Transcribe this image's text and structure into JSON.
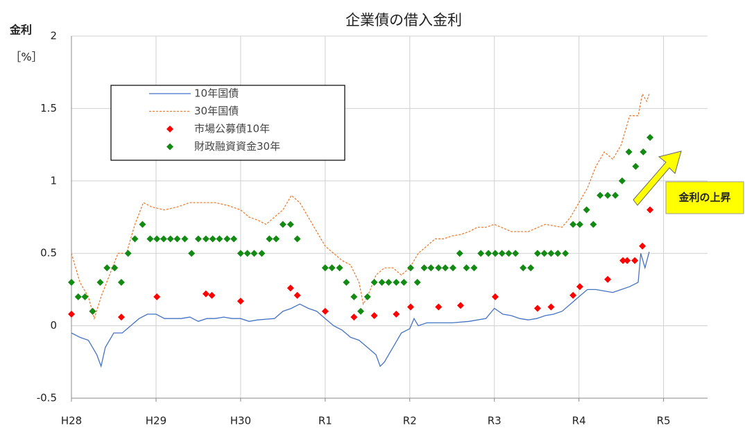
{
  "chart_data": {
    "type": "line",
    "title": "企業債の借入金利",
    "y_label": "金利",
    "y_unit": "［%］",
    "annotation": "金利の上昇",
    "xlim": [
      0,
      7.52
    ],
    "xticks": [
      {
        "value": 0,
        "label": "H28"
      },
      {
        "value": 1,
        "label": "H29"
      },
      {
        "value": 2,
        "label": "H30"
      },
      {
        "value": 3,
        "label": "R1"
      },
      {
        "value": 4,
        "label": "R2"
      },
      {
        "value": 5,
        "label": "R3"
      },
      {
        "value": 6,
        "label": "R4"
      },
      {
        "value": 7,
        "label": "R5"
      }
    ],
    "ylim": [
      -0.5,
      2
    ],
    "yticks": [
      -0.5,
      0,
      0.5,
      1,
      1.5,
      2
    ],
    "grid": true,
    "series": [
      {
        "name": "10年国債",
        "color": "#4472c4",
        "mode": "line",
        "dash": false,
        "x": [
          0,
          0.1,
          0.2,
          0.3,
          0.35,
          0.4,
          0.5,
          0.6,
          0.7,
          0.8,
          0.9,
          1.0,
          1.1,
          1.2,
          1.3,
          1.4,
          1.5,
          1.6,
          1.7,
          1.8,
          1.9,
          2.0,
          2.1,
          2.2,
          2.4,
          2.5,
          2.6,
          2.7,
          2.8,
          2.9,
          3.0,
          3.1,
          3.2,
          3.3,
          3.4,
          3.5,
          3.6,
          3.65,
          3.7,
          3.8,
          3.9,
          4.0,
          4.05,
          4.1,
          4.2,
          4.3,
          4.5,
          4.7,
          4.9,
          5.0,
          5.1,
          5.2,
          5.3,
          5.4,
          5.5,
          5.6,
          5.7,
          5.8,
          5.9,
          6.0,
          6.1,
          6.2,
          6.3,
          6.4,
          6.5,
          6.6,
          6.7,
          6.73,
          6.78,
          6.83
        ],
        "values": [
          -0.05,
          -0.08,
          -0.1,
          -0.2,
          -0.28,
          -0.15,
          -0.05,
          -0.05,
          0.0,
          0.05,
          0.08,
          0.08,
          0.05,
          0.05,
          0.05,
          0.06,
          0.03,
          0.05,
          0.05,
          0.06,
          0.05,
          0.05,
          0.03,
          0.04,
          0.05,
          0.1,
          0.12,
          0.15,
          0.12,
          0.1,
          0.05,
          0.0,
          -0.03,
          -0.08,
          -0.1,
          -0.15,
          -0.2,
          -0.28,
          -0.25,
          -0.15,
          -0.05,
          -0.02,
          0.05,
          0.0,
          0.02,
          0.02,
          0.02,
          0.03,
          0.05,
          0.12,
          0.08,
          0.07,
          0.05,
          0.04,
          0.05,
          0.07,
          0.08,
          0.1,
          0.15,
          0.2,
          0.25,
          0.25,
          0.24,
          0.23,
          0.25,
          0.27,
          0.3,
          0.5,
          0.4,
          0.51
        ]
      },
      {
        "name": "30年国債",
        "color": "#ed7d31",
        "mode": "line",
        "dash": true,
        "x": [
          0,
          0.1,
          0.2,
          0.27,
          0.35,
          0.45,
          0.55,
          0.65,
          0.75,
          0.85,
          0.95,
          1.1,
          1.25,
          1.4,
          1.55,
          1.7,
          1.85,
          2.0,
          2.1,
          2.2,
          2.3,
          2.4,
          2.5,
          2.6,
          2.7,
          2.8,
          2.9,
          3.0,
          3.1,
          3.2,
          3.3,
          3.4,
          3.45,
          3.5,
          3.6,
          3.7,
          3.8,
          3.9,
          4.0,
          4.1,
          4.2,
          4.3,
          4.4,
          4.5,
          4.6,
          4.7,
          4.8,
          4.9,
          5.0,
          5.2,
          5.4,
          5.6,
          5.8,
          5.9,
          6.0,
          6.1,
          6.2,
          6.3,
          6.4,
          6.5,
          6.6,
          6.7,
          6.75,
          6.8,
          6.83
        ],
        "values": [
          0.5,
          0.3,
          0.2,
          0.05,
          0.2,
          0.35,
          0.5,
          0.5,
          0.7,
          0.85,
          0.82,
          0.8,
          0.82,
          0.85,
          0.85,
          0.85,
          0.83,
          0.8,
          0.75,
          0.73,
          0.7,
          0.75,
          0.8,
          0.9,
          0.85,
          0.75,
          0.65,
          0.55,
          0.5,
          0.45,
          0.42,
          0.3,
          0.15,
          0.2,
          0.35,
          0.4,
          0.4,
          0.35,
          0.4,
          0.5,
          0.55,
          0.6,
          0.6,
          0.62,
          0.63,
          0.65,
          0.68,
          0.68,
          0.7,
          0.65,
          0.65,
          0.7,
          0.68,
          0.75,
          0.85,
          0.95,
          1.1,
          1.2,
          1.15,
          1.25,
          1.45,
          1.45,
          1.6,
          1.55,
          1.6
        ]
      },
      {
        "name": "市場公募債10年",
        "color": "#ff0000",
        "mode": "markers",
        "x": [
          0,
          0.25,
          0.59,
          1.01,
          1.59,
          1.66,
          2.0,
          2.59,
          2.67,
          3.0,
          3.34,
          3.58,
          3.84,
          4.01,
          4.34,
          4.6,
          5.01,
          5.51,
          5.67,
          5.93,
          6.01,
          6.34,
          6.52,
          6.57,
          6.66,
          6.75,
          6.84
        ],
        "values": [
          0.08,
          0.1,
          0.06,
          0.2,
          0.22,
          0.21,
          0.17,
          0.26,
          0.21,
          0.1,
          0.06,
          0.07,
          0.08,
          0.13,
          0.13,
          0.14,
          0.2,
          0.12,
          0.13,
          0.21,
          0.27,
          0.32,
          0.45,
          0.45,
          0.45,
          0.55,
          0.8
        ]
      },
      {
        "name": "財政融資資金30年",
        "color": "#138a13",
        "mode": "markers",
        "x": [
          0,
          0.08,
          0.16,
          0.25,
          0.34,
          0.42,
          0.51,
          0.59,
          0.67,
          0.75,
          0.84,
          0.93,
          1.01,
          1.09,
          1.17,
          1.25,
          1.34,
          1.42,
          1.5,
          1.59,
          1.67,
          1.75,
          1.84,
          1.92,
          2.0,
          2.08,
          2.16,
          2.25,
          2.34,
          2.42,
          2.5,
          2.59,
          2.67,
          3.0,
          3.08,
          3.17,
          3.25,
          3.34,
          3.42,
          3.5,
          3.58,
          3.67,
          3.75,
          3.84,
          3.93,
          4.01,
          4.09,
          4.17,
          4.25,
          4.34,
          4.42,
          4.51,
          4.59,
          4.67,
          4.76,
          4.84,
          4.93,
          5.01,
          5.09,
          5.17,
          5.25,
          5.34,
          5.43,
          5.51,
          5.59,
          5.67,
          5.75,
          5.84,
          5.93,
          6.01,
          6.09,
          6.17,
          6.25,
          6.34,
          6.43,
          6.51,
          6.59,
          6.67,
          6.76,
          6.84
        ],
        "values": [
          0.3,
          0.2,
          0.2,
          0.1,
          0.3,
          0.4,
          0.4,
          0.3,
          0.5,
          0.6,
          0.7,
          0.6,
          0.6,
          0.6,
          0.6,
          0.6,
          0.6,
          0.5,
          0.6,
          0.6,
          0.6,
          0.6,
          0.6,
          0.6,
          0.5,
          0.5,
          0.5,
          0.5,
          0.6,
          0.6,
          0.7,
          0.7,
          0.6,
          0.4,
          0.4,
          0.4,
          0.3,
          0.2,
          0.1,
          0.2,
          0.3,
          0.3,
          0.3,
          0.3,
          0.3,
          0.4,
          0.3,
          0.4,
          0.4,
          0.4,
          0.4,
          0.4,
          0.5,
          0.4,
          0.4,
          0.5,
          0.5,
          0.5,
          0.5,
          0.5,
          0.5,
          0.4,
          0.4,
          0.5,
          0.5,
          0.5,
          0.5,
          0.5,
          0.7,
          0.7,
          0.8,
          0.7,
          0.9,
          0.9,
          0.9,
          1.0,
          1.2,
          1.1,
          1.2,
          1.3
        ]
      }
    ]
  }
}
